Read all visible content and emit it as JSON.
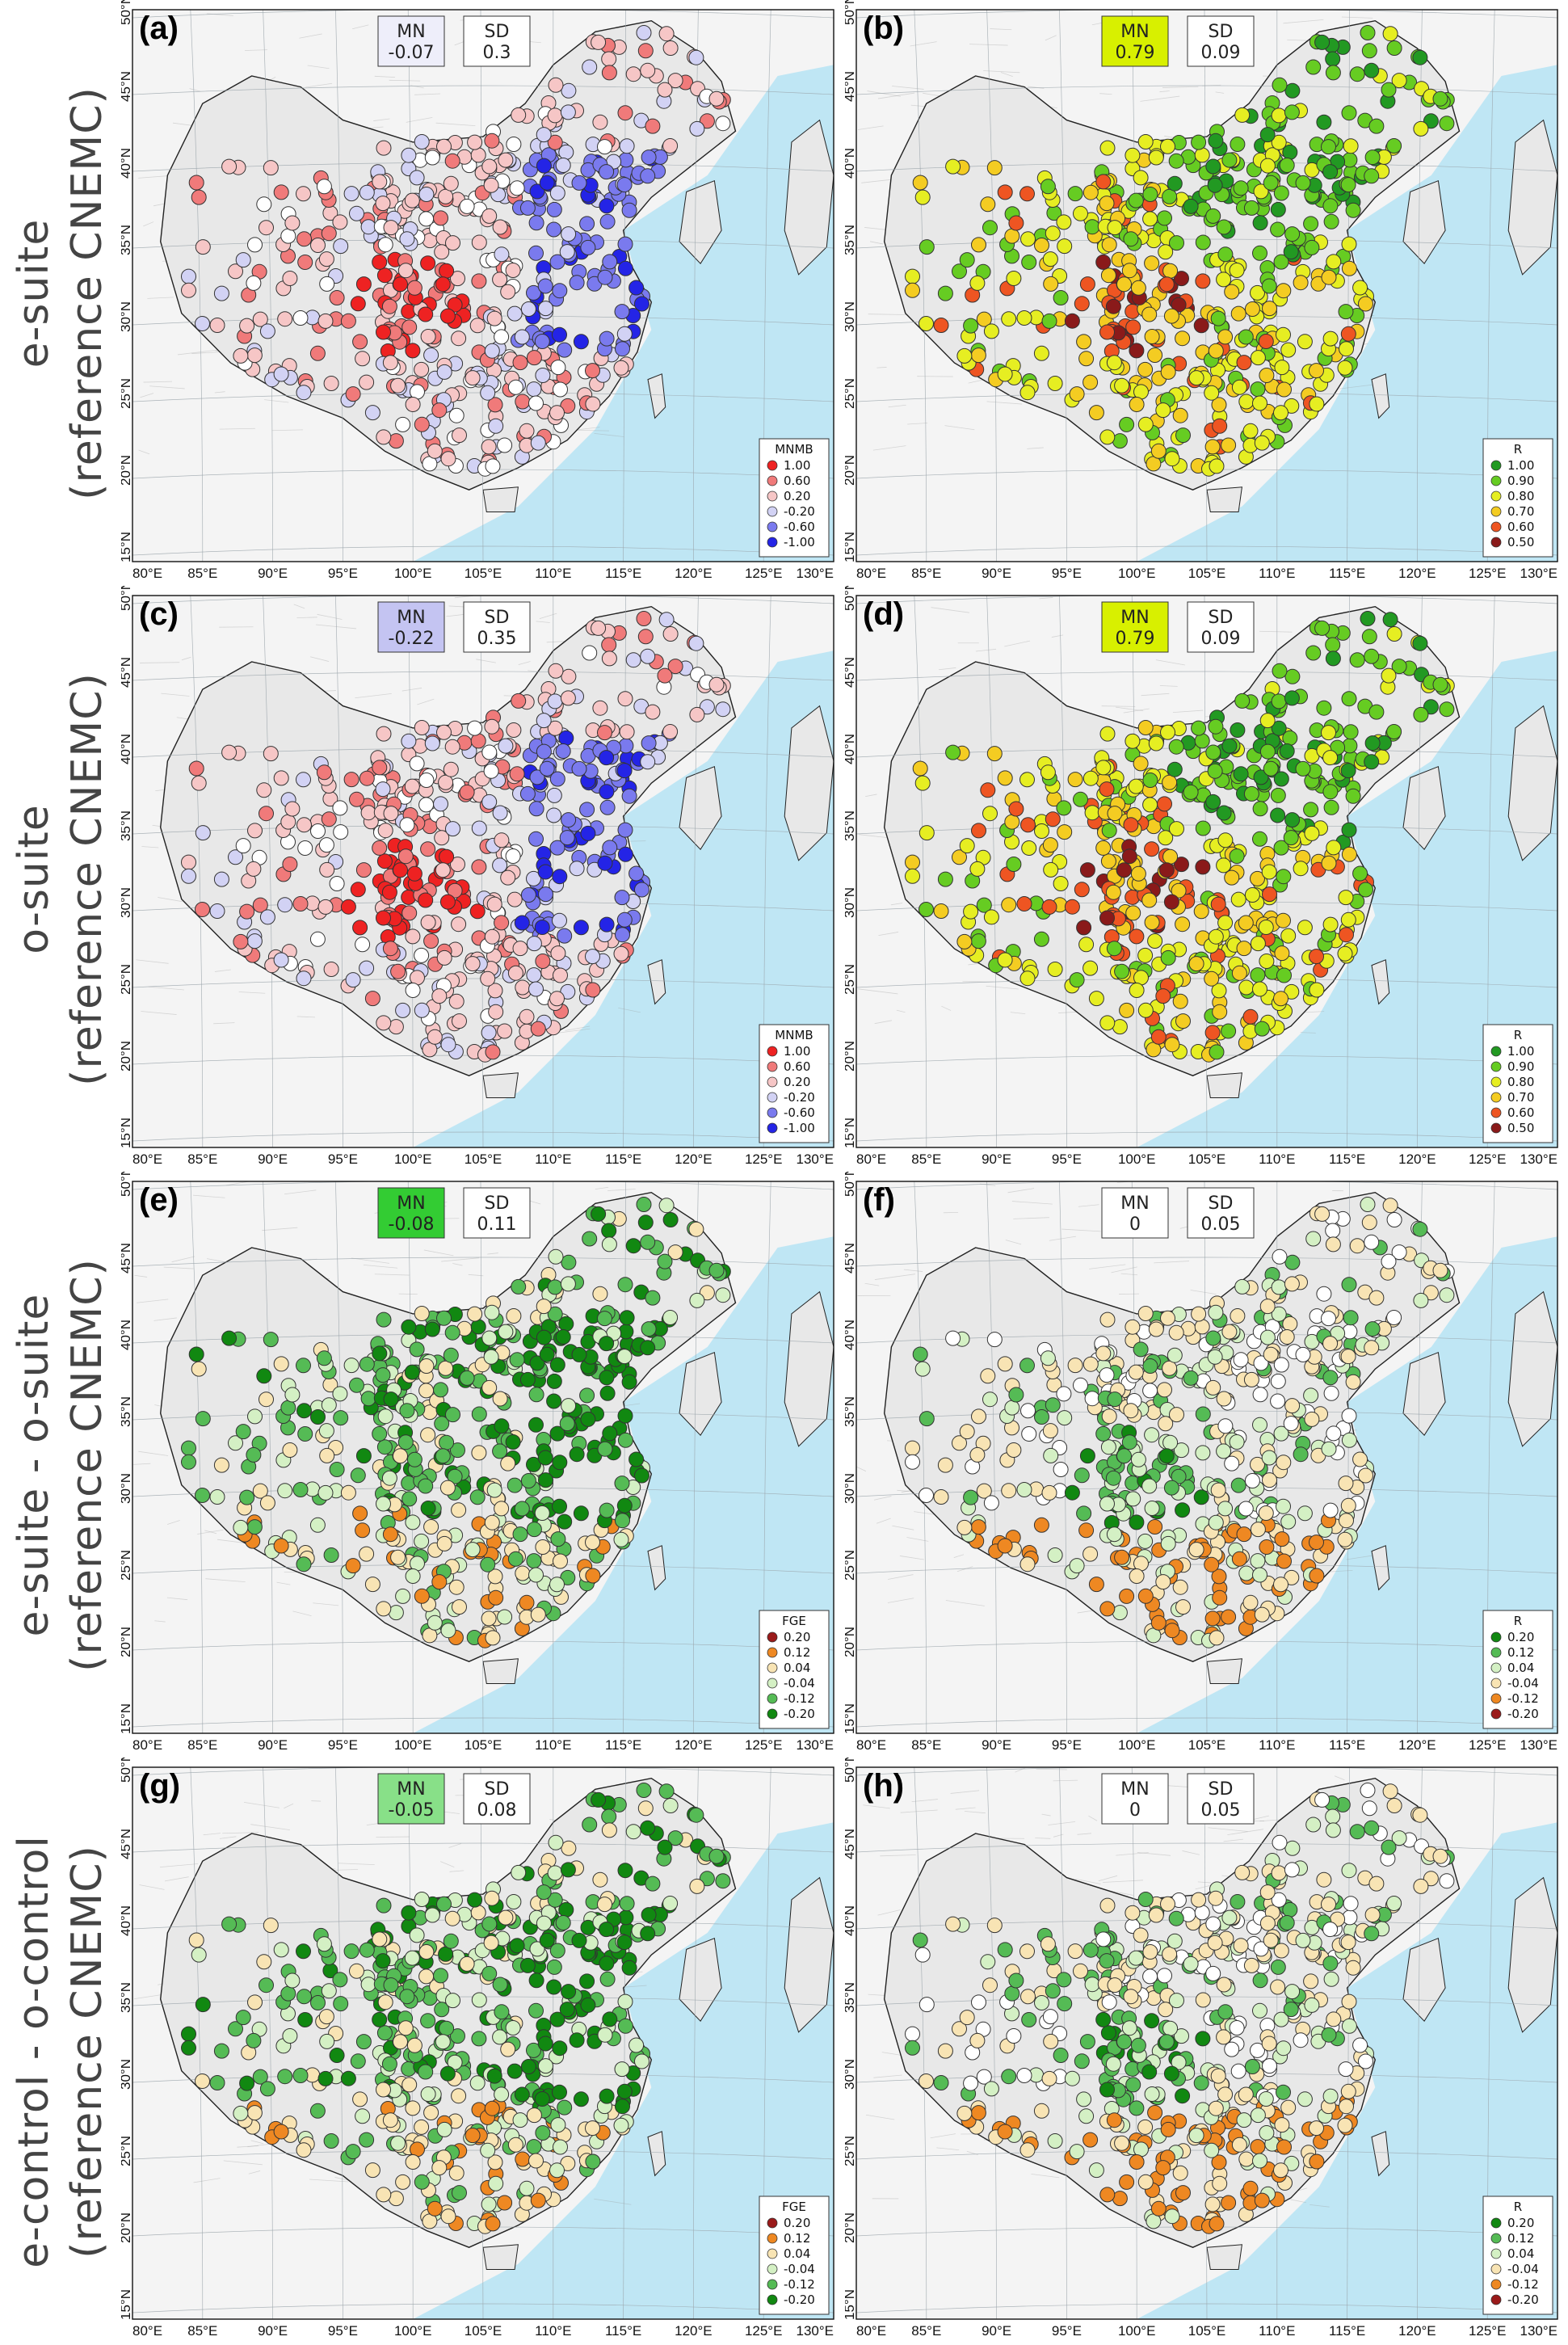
{
  "rows": [
    {
      "line1": "e-suite",
      "line2": "(reference CNEMC)"
    },
    {
      "line1": "o-suite",
      "line2": "(reference CNEMC)"
    },
    {
      "line1": "e-suite - o-suite",
      "line2": "(reference CNEMC)"
    },
    {
      "line1": "e-control - o-control",
      "line2": "(reference CNEMC)"
    }
  ],
  "lon_ticks": [
    "80°E",
    "85°E",
    "90°E",
    "95°E",
    "100°E",
    "105°E",
    "110°E",
    "115°E",
    "120°E",
    "125°E",
    "130°E"
  ],
  "lat_ticks": [
    "15°N",
    "20°N",
    "25°N",
    "30°N",
    "35°N",
    "40°N",
    "45°N",
    "50°N"
  ],
  "stat_labels": {
    "mn": "MN",
    "sd": "SD"
  },
  "panels": [
    {
      "letter": "(a)",
      "mn": "-0.07",
      "sd": "0.3",
      "mn_color": "#eeeefa",
      "legend_title": "MNMB",
      "scheme": "mnmb",
      "legend": [
        {
          "label": "1.00",
          "color": "#ee2222"
        },
        {
          "label": "0.60",
          "color": "#f07a7a"
        },
        {
          "label": "0.20",
          "color": "#f6c6c6"
        },
        {
          "label": "-0.20",
          "color": "#d2d2f4"
        },
        {
          "label": "-0.60",
          "color": "#7a7aee"
        },
        {
          "label": "-1.00",
          "color": "#2424e6"
        }
      ]
    },
    {
      "letter": "(b)",
      "mn": "0.79",
      "sd": "0.09",
      "mn_color": "#d8f000",
      "legend_title": "R",
      "scheme": "r",
      "legend": [
        {
          "label": "1.00",
          "color": "#229922"
        },
        {
          "label": "0.90",
          "color": "#66cc22"
        },
        {
          "label": "0.80",
          "color": "#e6ee22"
        },
        {
          "label": "0.70",
          "color": "#f4cc22"
        },
        {
          "label": "0.60",
          "color": "#ee5522"
        },
        {
          "label": "0.50",
          "color": "#8a1a1a"
        }
      ]
    },
    {
      "letter": "(c)",
      "mn": "-0.22",
      "sd": "0.35",
      "mn_color": "#c4c4f2",
      "legend_title": "MNMB",
      "scheme": "mnmb",
      "legend": [
        {
          "label": "1.00",
          "color": "#ee2222"
        },
        {
          "label": "0.60",
          "color": "#f07a7a"
        },
        {
          "label": "0.20",
          "color": "#f6c6c6"
        },
        {
          "label": "-0.20",
          "color": "#d2d2f4"
        },
        {
          "label": "-0.60",
          "color": "#7a7aee"
        },
        {
          "label": "-1.00",
          "color": "#2424e6"
        }
      ]
    },
    {
      "letter": "(d)",
      "mn": "0.79",
      "sd": "0.09",
      "mn_color": "#d8f000",
      "legend_title": "R",
      "scheme": "r",
      "legend": [
        {
          "label": "1.00",
          "color": "#229922"
        },
        {
          "label": "0.90",
          "color": "#66cc22"
        },
        {
          "label": "0.80",
          "color": "#e6ee22"
        },
        {
          "label": "0.70",
          "color": "#f4cc22"
        },
        {
          "label": "0.60",
          "color": "#ee5522"
        },
        {
          "label": "0.50",
          "color": "#8a1a1a"
        }
      ]
    },
    {
      "letter": "(e)",
      "mn": "-0.08",
      "sd": "0.11",
      "mn_color": "#33cc33",
      "legend_title": "FGE",
      "scheme": "fge",
      "legend": [
        {
          "label": "0.20",
          "color": "#9a1a1a"
        },
        {
          "label": "0.12",
          "color": "#ee8822"
        },
        {
          "label": "0.04",
          "color": "#f8e4b4"
        },
        {
          "label": "-0.04",
          "color": "#d4f0c4"
        },
        {
          "label": "-0.12",
          "color": "#55bb55"
        },
        {
          "label": "-0.20",
          "color": "#118811"
        }
      ]
    },
    {
      "letter": "(f)",
      "mn": "0",
      "sd": "0.05",
      "mn_color": "#ffffff",
      "legend_title": "R",
      "scheme": "dr",
      "legend": [
        {
          "label": "0.20",
          "color": "#118811"
        },
        {
          "label": "0.12",
          "color": "#55bb55"
        },
        {
          "label": "0.04",
          "color": "#d4f0c4"
        },
        {
          "label": "-0.04",
          "color": "#f8e4b4"
        },
        {
          "label": "-0.12",
          "color": "#ee8822"
        },
        {
          "label": "-0.20",
          "color": "#9a1a1a"
        }
      ]
    },
    {
      "letter": "(g)",
      "mn": "-0.05",
      "sd": "0.08",
      "mn_color": "#88e088",
      "legend_title": "FGE",
      "scheme": "fge",
      "legend": [
        {
          "label": "0.20",
          "color": "#9a1a1a"
        },
        {
          "label": "0.12",
          "color": "#ee8822"
        },
        {
          "label": "0.04",
          "color": "#f8e4b4"
        },
        {
          "label": "-0.04",
          "color": "#d4f0c4"
        },
        {
          "label": "-0.12",
          "color": "#55bb55"
        },
        {
          "label": "-0.20",
          "color": "#118811"
        }
      ]
    },
    {
      "letter": "(h)",
      "mn": "0",
      "sd": "0.05",
      "mn_color": "#ffffff",
      "legend_title": "R",
      "scheme": "dr",
      "legend": [
        {
          "label": "0.20",
          "color": "#118811"
        },
        {
          "label": "0.12",
          "color": "#55bb55"
        },
        {
          "label": "0.04",
          "color": "#d4f0c4"
        },
        {
          "label": "-0.04",
          "color": "#f8e4b4"
        },
        {
          "label": "-0.12",
          "color": "#ee8822"
        },
        {
          "label": "-0.20",
          "color": "#9a1a1a"
        }
      ]
    }
  ],
  "colors": {
    "sea": "#bfe6f4",
    "land": "#e8e8e8",
    "outside": "#f4f4f4",
    "border": "#222222",
    "grid": "#9aa4aa"
  }
}
